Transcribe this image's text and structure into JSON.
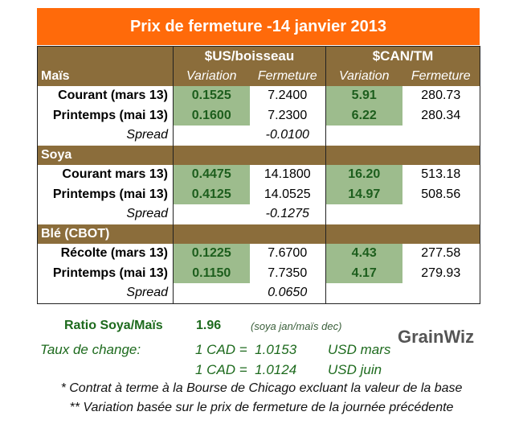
{
  "title": "Prix de fermeture -14 janvier 2013",
  "headers": {
    "us": "$US/boisseau",
    "can": "$CAN/TM",
    "variation": "Variation",
    "fermeture": "Fermeture"
  },
  "colors": {
    "banner": "#ff6a0a",
    "section": "#8b6d3b",
    "highlight": "#9dbc8d",
    "green_text": "#1d6a1d"
  },
  "sections": [
    {
      "name": "Maïs",
      "rows": [
        {
          "label": "Courant (mars 13)",
          "us_var": "0.1525",
          "us_close": "7.2400",
          "can_var": "5.91",
          "can_close": "280.73"
        },
        {
          "label": "Printemps (mai 13)",
          "us_var": "0.1600",
          "us_close": "7.2300",
          "can_var": "6.22",
          "can_close": "280.34"
        }
      ],
      "spread_label": "Spread",
      "spread": "-0.0100"
    },
    {
      "name": "Soya",
      "rows": [
        {
          "label": "Courant mars 13)",
          "us_var": "0.4475",
          "us_close": "14.1800",
          "can_var": "16.20",
          "can_close": "513.18"
        },
        {
          "label": "Printemps (mai 13)",
          "us_var": "0.4125",
          "us_close": "14.0525",
          "can_var": "14.97",
          "can_close": "508.56"
        }
      ],
      "spread_label": "Spread",
      "spread": "-0.1275"
    },
    {
      "name": "Blé (CBOT)",
      "rows": [
        {
          "label": "Récolte (mars 13)",
          "us_var": "0.1225",
          "us_close": "7.6700",
          "can_var": "4.43",
          "can_close": "277.58"
        },
        {
          "label": "Printemps (mai 13)",
          "us_var": "0.1150",
          "us_close": "7.7350",
          "can_var": "4.17",
          "can_close": "279.93"
        }
      ],
      "spread_label": "Spread",
      "spread": "0.0650"
    }
  ],
  "ratio": {
    "label": "Ratio Soya/Maïs",
    "value": "1.96",
    "note": "(soya jan/maïs dec)"
  },
  "exchange": {
    "label": "Taux de change:",
    "rates": [
      {
        "text": "1 CAD =  1.0153",
        "unit": "USD mars"
      },
      {
        "text": "1 CAD =  1.0124",
        "unit": "USD juin"
      }
    ]
  },
  "notes": [
    "* Contrat à terme à la Bourse de Chicago excluant la valeur de la base",
    "** Variation basée sur le prix de fermeture de la journée précédente"
  ],
  "logo": "GrainWiz"
}
